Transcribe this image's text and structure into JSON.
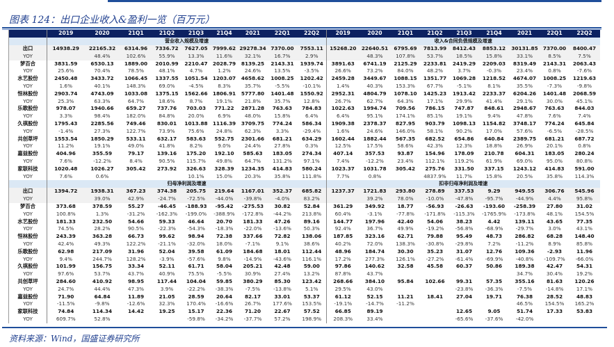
{
  "title": "图表 124：出口企业收入&盈利一览（百万元）",
  "source": "资料来源：Wind，国盛证券研究所",
  "colors": {
    "header_bg": "#0c2161",
    "section_bg": "#dbe8f5",
    "accent": "#1f4e9a"
  },
  "columns": [
    "2019",
    "2020",
    "21Q1",
    "21Q2",
    "21Q3",
    "21Q4",
    "2021",
    "22Q1",
    "22Q2"
  ],
  "sections": [
    {
      "left_title": "营业收入规模及增速",
      "right_title": "收入&合同负债规模及增速",
      "rows": [
        {
          "label": "出口",
          "type": "val",
          "gray": true,
          "left": [
            "14938.29",
            "22165.32",
            "6314.96",
            "7336.72",
            "7627.05",
            "7999.62",
            "29278.34",
            "7370.00",
            "7553.11"
          ],
          "right": [
            "15268.20",
            "22640.51",
            "6795.69",
            "7813.99",
            "8412.43",
            "8853.12",
            "30131.85",
            "7370.00",
            "8400.47"
          ]
        },
        {
          "label": "YOY",
          "type": "yoy",
          "gray": true,
          "left": [
            "",
            "48.4%",
            "102.6%",
            "55.9%",
            "13.3%",
            "11.6%",
            "32.1%",
            "16.7%",
            "2.9%"
          ],
          "right": [
            "",
            "48.3%",
            "107.8%",
            "53.7%",
            "18.5%",
            "15.8%",
            "33.1%",
            "8.5%",
            "7.5%"
          ]
        },
        {
          "label": "梦百合",
          "type": "val",
          "left": [
            "3831.59",
            "6530.13",
            "1889.00",
            "2010.99",
            "2210.47",
            "2028.79",
            "8139.25",
            "2143.31",
            "1939.74"
          ],
          "right": [
            "3891.63",
            "6741.19",
            "2125.29",
            "2233.81",
            "2419.29",
            "2209.03",
            "8319.49",
            "2143.31",
            "2063.43"
          ]
        },
        {
          "label": "YOY",
          "type": "yoy",
          "left": [
            "25.6%",
            "70.4%",
            "78.5%",
            "48.1%",
            "4.7%",
            "1.2%",
            "24.6%",
            "13.5%",
            "-3.5%"
          ],
          "right": [
            "26.6%",
            "73.2%",
            "84.0%",
            "48.2%",
            "3.7%",
            "-0.3%",
            "23.4%",
            "0.8%",
            "-7.6%"
          ]
        },
        {
          "label": "水艺股份",
          "type": "val",
          "left": [
            "2450.48",
            "3433.72",
            "1066.45",
            "1337.55",
            "1051.54",
            "1203.07",
            "4658.62",
            "1008.25",
            "1202.42"
          ],
          "right": [
            "2459.28",
            "3449.67",
            "1088.15",
            "1351.77",
            "1069.28",
            "1218.52",
            "4674.07",
            "1008.25",
            "1219.63"
          ]
        },
        {
          "label": "YOY",
          "type": "yoy",
          "left": [
            "1.6%",
            "40.1%",
            "148.3%",
            "69.0%",
            "-4.5%",
            "8.3%",
            "35.7%",
            "-5.5%",
            "-10.1%"
          ],
          "right": [
            "1.4%",
            "40.3%",
            "153.3%",
            "67.7%",
            "-5.1%",
            "8.1%",
            "35.5%",
            "-7.3%",
            "-9.8%"
          ]
        },
        {
          "label": "恒林股份",
          "type": "val",
          "left": [
            "2903.74",
            "4743.09",
            "1033.08",
            "1375.15",
            "1562.66",
            "1806.91",
            "5777.80",
            "1401.48",
            "1550.92"
          ],
          "right": [
            "2952.31",
            "4804.79",
            "1078.10",
            "1425.23",
            "1913.42",
            "2233.37",
            "6204.26",
            "1401.48",
            "2068.59"
          ]
        },
        {
          "label": "YOY",
          "type": "yoy",
          "left": [
            "25.3%",
            "63.3%",
            "64.7%",
            "18.6%",
            "8.7%",
            "19.1%",
            "21.8%",
            "35.7%",
            "12.8%"
          ],
          "right": [
            "26.7%",
            "62.7%",
            "64.3%",
            "17.1%",
            "29.9%",
            "41.4%",
            "29.1%",
            "30.0%",
            "45.1%"
          ]
        },
        {
          "label": "乐歌股份",
          "type": "val",
          "left": [
            "978.07",
            "1940.66",
            "659.27",
            "737.76",
            "703.03",
            "771.22",
            "2871.28",
            "763.63",
            "784.83"
          ],
          "right": [
            "1022.63",
            "1994.74",
            "709.56",
            "786.15",
            "747.87",
            "848.61",
            "2948.67",
            "763.63",
            "844.03"
          ]
        },
        {
          "label": "YOY",
          "type": "yoy",
          "left": [
            "3.3%",
            "98.4%",
            "182.0%",
            "84.8%",
            "20.0%",
            "6.9%",
            "48.0%",
            "15.8%",
            "6.4%"
          ],
          "right": [
            "6.4%",
            "95.1%",
            "174.1%",
            "85.1%",
            "19.1%",
            "9.4%",
            "47.8%",
            "7.6%",
            "7.4%"
          ]
        },
        {
          "label": "久祺股份",
          "type": "val",
          "left": [
            "1795.43",
            "2285.56",
            "749.46",
            "830.01",
            "1013.88",
            "1116.39",
            "3709.75",
            "774.24",
            "586.34"
          ],
          "right": [
            "1909.38",
            "2378.37",
            "827.95",
            "903.79",
            "1098.13",
            "1154.82",
            "3748.17",
            "774.24",
            "645.84"
          ]
        },
        {
          "label": "YOY",
          "type": "yoy",
          "left": [
            "-1.4%",
            "27.3%",
            "122.7%",
            "73.9%",
            "75.6%",
            "24.8%",
            "62.3%",
            "3.3%",
            "-29.4%"
          ],
          "right": [
            "1.6%",
            "24.6%",
            "146.0%",
            "58.1%",
            "90.2%",
            "17.0%",
            "57.6%",
            "-6.5%",
            "-28.5%"
          ]
        },
        {
          "label": "共创草坪",
          "type": "val",
          "left": [
            "1553.54",
            "1850.29",
            "533.11",
            "632.17",
            "583.63",
            "552.75",
            "2301.66",
            "681.21",
            "634.29"
          ],
          "right": [
            "1602.44",
            "1882.44",
            "567.35",
            "682.52",
            "654.86",
            "640.84",
            "2389.75",
            "681.21",
            "687.72"
          ]
        },
        {
          "label": "YOY",
          "type": "yoy",
          "left": [
            "11.2%",
            "19.1%",
            "49.0%",
            "41.8%",
            "8.2%",
            "9.0%",
            "24.4%",
            "27.8%",
            "0.3%"
          ],
          "right": [
            "12.5%",
            "17.5%",
            "58.6%",
            "42.3%",
            "12.3%",
            "18.8%",
            "26.9%",
            "20.1%",
            "0.8%"
          ]
        },
        {
          "label": "嘉益股份",
          "type": "val",
          "left": [
            "404.96",
            "355.59",
            "79.17",
            "139.16",
            "175.20",
            "192.10",
            "585.63",
            "183.05",
            "274.34"
          ],
          "right": [
            "407.14",
            "357.53",
            "93.87",
            "154.96",
            "178.09",
            "210.78",
            "604.31",
            "183.05",
            "280.24"
          ]
        },
        {
          "label": "YOY",
          "type": "yoy",
          "left": [
            "7.6%",
            "-12.2%",
            "8.4%",
            "90.5%",
            "115.7%",
            "49.8%",
            "64.7%",
            "131.2%",
            "97.1%"
          ],
          "right": [
            "7.4%",
            "-12.2%",
            "23.4%",
            "112.1%",
            "119.2%",
            "61.9%",
            "69.0%",
            "95.0%",
            "80.8%"
          ]
        },
        {
          "label": "家联科技",
          "type": "val",
          "left": [
            "1020.48",
            "1026.27",
            "305.42",
            "273.92",
            "326.63",
            "328.39",
            "1234.35",
            "414.83",
            "580.24"
          ],
          "right": [
            "1023.37",
            "1031.78",
            "305.42",
            "275.76",
            "331.50",
            "337.15",
            "1243.12",
            "414.83",
            "591.00"
          ]
        },
        {
          "label": "YOY",
          "type": "yoy",
          "left": [
            "7.6%",
            "0.6%",
            "",
            "",
            "10.1%",
            "15.0%",
            "20.3%",
            "35.8%",
            "111.8%"
          ],
          "right": [
            "7.7%",
            "0.8%",
            "",
            "4837.9%",
            "11.7%",
            "15.8%",
            "20.5%",
            "35.8%",
            "114.3%"
          ]
        }
      ]
    },
    {
      "left_title": "归母净利润及增速",
      "right_title": "扣非归母净利润及增速",
      "rows": [
        {
          "label": "出口",
          "type": "val",
          "gray": true,
          "left": [
            "1394.72",
            "1938.31",
            "367.23",
            "374.38",
            "205.75",
            "219.64",
            "1167.01",
            "352.37",
            "685.82"
          ],
          "right": [
            "1237.37",
            "1721.83",
            "293.80",
            "278.89",
            "337.53",
            "9.29",
            "949.55",
            "306.76",
            "545.96"
          ]
        },
        {
          "label": "YOY",
          "type": "yoy",
          "gray": true,
          "left": [
            "",
            "39.0%",
            "42.9%",
            "-24.7%",
            "-72.5%",
            "-44.0%",
            "-39.8%",
            "-4.0%",
            "83.2%"
          ],
          "right": [
            "",
            "39.2%",
            "78.0%",
            "-10.0%",
            "-47.8%",
            "-95.7%",
            "-44.9%",
            "4.4%",
            "95.8%"
          ]
        },
        {
          "label": "梦百合",
          "type": "val",
          "left": [
            "373.68",
            "378.59",
            "55.27",
            "-46.45",
            "-188.93",
            "-95.42",
            "-275.53",
            "30.82",
            "52.84"
          ],
          "right": [
            "361.29",
            "349.92",
            "18.77",
            "-56.93",
            "-26.63",
            "-193.60",
            "-258.39",
            "27.80",
            "31.02"
          ]
        },
        {
          "label": "YOY",
          "type": "yoy",
          "left": [
            "100.8%",
            "1.3%",
            "-31.2%",
            "-162.3%",
            "-199.0%",
            "-388.9%",
            "-172.8%",
            "-44.2%",
            "213.8%"
          ],
          "right": [
            "60.4%",
            "-3.1%",
            "-77.8%",
            "-171.8%",
            "-115.3%",
            "-1765.9%",
            "-173.8%",
            "48.1%",
            "154.5%"
          ]
        },
        {
          "label": "水艺股份",
          "type": "val",
          "left": [
            "181.33",
            "232.50",
            "54.66",
            "59.33",
            "46.64",
            "20.70",
            "181.33",
            "47.26",
            "89.16"
          ],
          "right": [
            "144.77",
            "197.96",
            "42.40",
            "54.06",
            "38.23",
            "4.42",
            "139.11",
            "43.65",
            "77.35"
          ]
        },
        {
          "label": "YOY",
          "type": "yoy",
          "left": [
            "74.5%",
            "28.2%",
            "90.5%",
            "-22.3%",
            "-54.3%",
            "-18.3%",
            "-22.0%",
            "-13.6%",
            "50.3%"
          ],
          "right": [
            "92.4%",
            "36.7%",
            "49.9%",
            "-19.2%",
            "-56.8%",
            "-68.9%",
            "-29.7%",
            "3.0%",
            "43.1%"
          ]
        },
        {
          "label": "恒林股份",
          "type": "val",
          "left": [
            "243.39",
            "363.28",
            "66.73",
            "99.62",
            "98.94",
            "72.38",
            "337.66",
            "72.82",
            "138.06"
          ],
          "right": [
            "187.85",
            "323.16",
            "62.71",
            "79.88",
            "95.49",
            "48.73",
            "286.82",
            "68.28",
            "148.40"
          ]
        },
        {
          "label": "YOY",
          "type": "yoy",
          "left": [
            "42.4%",
            "49.3%",
            "122.2%",
            "-21.1%",
            "-32.0%",
            "18.0%",
            "-7.1%",
            "9.1%",
            "38.6%"
          ],
          "right": [
            "40.2%",
            "72.0%",
            "138.3%",
            "-30.8%",
            "-29.8%",
            "7.2%",
            "-11.2%",
            "8.9%",
            "85.8%"
          ]
        },
        {
          "label": "乐歌股份",
          "type": "val",
          "left": [
            "62.98",
            "217.09",
            "31.96",
            "52.04",
            "39.58",
            "61.09",
            "184.68",
            "18.01",
            "112.44"
          ],
          "right": [
            "48.96",
            "184.74",
            "30.30",
            "35.23",
            "31.07",
            "12.76",
            "109.36",
            "-2.93",
            "11.96"
          ]
        },
        {
          "label": "YOY",
          "type": "yoy",
          "left": [
            "9.4%",
            "244.7%",
            "128.2%",
            "-3.9%",
            "-57.6%",
            "9.8%",
            "-14.9%",
            "-43.6%",
            "116.1%"
          ],
          "right": [
            "17.2%",
            "277.3%",
            "126.1%",
            "-27.2%",
            "-61.4%",
            "-69.9%",
            "-40.8%",
            "-109.7%",
            "-66.0%"
          ]
        },
        {
          "label": "久祺股份",
          "type": "val",
          "left": [
            "101.99",
            "156.75",
            "33.34",
            "52.11",
            "61.71",
            "58.04",
            "205.21",
            "42.48",
            "59.00"
          ],
          "right": [
            "97.86",
            "140.62",
            "32.58",
            "45.58",
            "60.37",
            "50.86",
            "189.38",
            "42.47",
            "54.31"
          ]
        },
        {
          "label": "YOY",
          "type": "yoy",
          "left": [
            "97.6%",
            "53.7%",
            "43.7%",
            "40.9%",
            "75.5%",
            "-5.5%",
            "30.9%",
            "27.4%",
            "13.2%"
          ],
          "right": [
            "87.8%",
            "43.7%",
            "",
            "",
            "",
            "",
            "34.7%",
            "30.4%",
            "19.2%"
          ]
        },
        {
          "label": "共创草坪",
          "type": "val",
          "left": [
            "284.60",
            "410.92",
            "98.95",
            "117.44",
            "104.04",
            "59.85",
            "380.29",
            "85.30",
            "123.42"
          ],
          "right": [
            "268.66",
            "384.10",
            "95.84",
            "102.66",
            "99.31",
            "57.35",
            "355.16",
            "81.63",
            "120.26"
          ]
        },
        {
          "label": "YOY",
          "type": "yoy",
          "left": [
            "24.7%",
            "44.4%",
            "47.3%",
            "3.9%",
            "-22.2%",
            "-38.3%",
            "-7.5%",
            "-13.8%",
            "5.1%"
          ],
          "right": [
            "29.5%",
            "43.0%",
            "",
            "",
            "-23.8%",
            "-36.3%",
            "-7.5%",
            "-14.8%",
            "17.1%"
          ]
        },
        {
          "label": "嘉益股份",
          "type": "val",
          "left": [
            "71.90",
            "64.84",
            "11.89",
            "21.05",
            "28.59",
            "20.64",
            "82.17",
            "33.01",
            "53.37"
          ],
          "right": [
            "61.12",
            "52.15",
            "11.21",
            "18.41",
            "27.04",
            "19.71",
            "76.38",
            "28.52",
            "48.83"
          ]
        },
        {
          "label": "YOY",
          "type": "yoy",
          "left": [
            "-11.5%",
            "-9.8%",
            "-12.6%",
            "32.3%",
            "170.4%",
            "-16.6%",
            "26.7%",
            "177.6%",
            "153.5%"
          ],
          "right": [
            "-19.1%",
            "-14.7%",
            "-11.2%",
            "",
            "",
            "",
            "46.5%",
            "154.5%",
            "165.2%"
          ]
        },
        {
          "label": "家联科技",
          "type": "val",
          "left": [
            "74.84",
            "114.34",
            "14.42",
            "19.25",
            "15.17",
            "22.36",
            "71.20",
            "22.67",
            "57.52"
          ],
          "right": [
            "66.85",
            "89.19",
            "",
            "",
            "12.65",
            "9.05",
            "51.74",
            "17.33",
            "53.83"
          ]
        },
        {
          "label": "YOY",
          "type": "yoy",
          "left": [
            "609.7%",
            "52.8%",
            "",
            "",
            "-59.8%",
            "-34.2%",
            "-37.7%",
            "57.2%",
            "198.9%"
          ],
          "right": [
            "208.3%",
            "33.4%",
            "",
            "",
            "-65.6%",
            "-37.6%",
            "-42.0%",
            "",
            ""
          ]
        }
      ]
    }
  ]
}
